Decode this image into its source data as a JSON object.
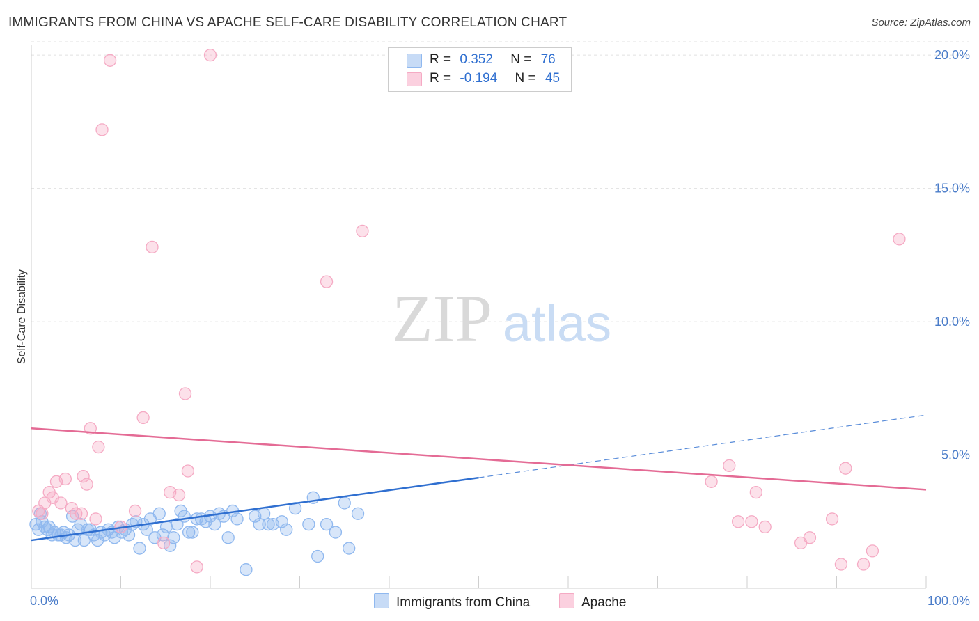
{
  "title": "IMMIGRANTS FROM CHINA VS APACHE SELF-CARE DISABILITY CORRELATION CHART",
  "source": "Source: ZipAtlas.com",
  "watermark": {
    "zip": "ZIP",
    "atlas": "atlas"
  },
  "legend": {
    "rows": [
      {
        "r_label": "R =",
        "r_value": "0.352",
        "n_label": "N =",
        "n_value": "76"
      },
      {
        "r_label": "R =",
        "r_value": "-0.194",
        "n_label": "N =",
        "n_value": "45"
      }
    ]
  },
  "bottom_legend": [
    "Immigrants from China",
    "Apache"
  ],
  "chart_data": {
    "type": "scatter",
    "title": "IMMIGRANTS FROM CHINA VS APACHE SELF-CARE DISABILITY CORRELATION CHART",
    "xlabel": "",
    "ylabel": "Self-Care Disability",
    "xlim": [
      0,
      100
    ],
    "ylim": [
      0,
      20.5
    ],
    "x_tick_labels": [
      "0.0%",
      "100.0%"
    ],
    "y_ticks": [
      5,
      10,
      15,
      20
    ],
    "y_tick_labels": [
      "5.0%",
      "10.0%",
      "15.0%",
      "20.0%"
    ],
    "grid": "horizontal dashed",
    "legend_position": "top-center",
    "series": [
      {
        "name": "Immigrants from China",
        "color": "#8fb8ef",
        "line_color": "#2f6fd0",
        "trend": {
          "x0": 0,
          "y0": 1.8,
          "x1": 100,
          "y1": 6.5,
          "solid_until": 50
        },
        "points": [
          [
            0.5,
            2.4
          ],
          [
            0.8,
            2.2
          ],
          [
            1.0,
            2.8
          ],
          [
            1.2,
            2.5
          ],
          [
            1.5,
            2.3
          ],
          [
            1.8,
            2.2
          ],
          [
            2.0,
            2.3
          ],
          [
            2.3,
            2.0
          ],
          [
            2.6,
            2.1
          ],
          [
            3.0,
            2.0
          ],
          [
            3.3,
            2.0
          ],
          [
            3.6,
            2.1
          ],
          [
            3.9,
            1.9
          ],
          [
            4.2,
            2.0
          ],
          [
            4.6,
            2.7
          ],
          [
            4.9,
            1.8
          ],
          [
            5.2,
            2.2
          ],
          [
            5.5,
            2.4
          ],
          [
            5.9,
            1.8
          ],
          [
            6.3,
            2.2
          ],
          [
            6.6,
            2.2
          ],
          [
            7.0,
            2.0
          ],
          [
            7.4,
            1.8
          ],
          [
            7.8,
            2.1
          ],
          [
            8.2,
            2.0
          ],
          [
            8.6,
            2.2
          ],
          [
            9.0,
            2.1
          ],
          [
            9.3,
            1.9
          ],
          [
            9.7,
            2.3
          ],
          [
            10.1,
            2.1
          ],
          [
            10.5,
            2.2
          ],
          [
            10.9,
            2.0
          ],
          [
            11.3,
            2.4
          ],
          [
            11.7,
            2.5
          ],
          [
            12.1,
            1.5
          ],
          [
            12.5,
            2.4
          ],
          [
            12.9,
            2.2
          ],
          [
            13.3,
            2.6
          ],
          [
            13.8,
            1.9
          ],
          [
            14.3,
            2.8
          ],
          [
            14.7,
            2.0
          ],
          [
            15.1,
            2.3
          ],
          [
            15.5,
            1.6
          ],
          [
            15.9,
            1.9
          ],
          [
            16.3,
            2.4
          ],
          [
            16.7,
            2.9
          ],
          [
            17.1,
            2.7
          ],
          [
            17.6,
            2.1
          ],
          [
            18.0,
            2.1
          ],
          [
            18.5,
            2.6
          ],
          [
            19.0,
            2.6
          ],
          [
            19.5,
            2.5
          ],
          [
            20.0,
            2.7
          ],
          [
            20.5,
            2.4
          ],
          [
            21.0,
            2.8
          ],
          [
            21.5,
            2.7
          ],
          [
            22.0,
            1.9
          ],
          [
            22.5,
            2.9
          ],
          [
            23.0,
            2.6
          ],
          [
            24.0,
            0.7
          ],
          [
            25.0,
            2.7
          ],
          [
            25.5,
            2.4
          ],
          [
            26.0,
            2.8
          ],
          [
            26.5,
            2.4
          ],
          [
            27.0,
            2.4
          ],
          [
            28.0,
            2.5
          ],
          [
            28.5,
            2.2
          ],
          [
            29.5,
            3.0
          ],
          [
            31.0,
            2.4
          ],
          [
            31.5,
            3.4
          ],
          [
            32.0,
            1.2
          ],
          [
            33.0,
            2.4
          ],
          [
            34.0,
            2.1
          ],
          [
            35.0,
            3.2
          ],
          [
            35.5,
            1.5
          ],
          [
            36.5,
            2.8
          ]
        ]
      },
      {
        "name": "Apache",
        "color": "#f5aac4",
        "line_color": "#e46b95",
        "trend": {
          "x0": 0,
          "y0": 6.0,
          "x1": 100,
          "y1": 3.7
        },
        "points": [
          [
            0.8,
            2.9
          ],
          [
            1.2,
            2.8
          ],
          [
            1.5,
            3.2
          ],
          [
            2.0,
            3.6
          ],
          [
            2.4,
            3.4
          ],
          [
            2.8,
            4.0
          ],
          [
            3.3,
            3.2
          ],
          [
            3.8,
            4.1
          ],
          [
            4.5,
            3.0
          ],
          [
            5.0,
            2.8
          ],
          [
            5.6,
            2.8
          ],
          [
            5.8,
            4.2
          ],
          [
            6.2,
            3.9
          ],
          [
            6.6,
            6.0
          ],
          [
            7.2,
            2.6
          ],
          [
            7.5,
            5.3
          ],
          [
            7.9,
            17.2
          ],
          [
            8.8,
            19.8
          ],
          [
            10.0,
            2.3
          ],
          [
            11.6,
            2.9
          ],
          [
            12.5,
            6.4
          ],
          [
            13.5,
            12.8
          ],
          [
            14.8,
            1.7
          ],
          [
            15.5,
            3.6
          ],
          [
            16.5,
            3.5
          ],
          [
            17.2,
            7.3
          ],
          [
            17.5,
            4.4
          ],
          [
            18.5,
            0.8
          ],
          [
            20.0,
            20.0
          ],
          [
            33.0,
            11.5
          ],
          [
            37.0,
            13.4
          ],
          [
            76.0,
            4.0
          ],
          [
            78.0,
            4.6
          ],
          [
            79.0,
            2.5
          ],
          [
            80.5,
            2.5
          ],
          [
            81.0,
            3.6
          ],
          [
            82.0,
            2.3
          ],
          [
            86.0,
            1.7
          ],
          [
            87.0,
            1.9
          ],
          [
            89.5,
            2.6
          ],
          [
            90.5,
            0.9
          ],
          [
            91.0,
            4.5
          ],
          [
            93.0,
            0.9
          ],
          [
            94.0,
            1.4
          ],
          [
            97.0,
            13.1
          ]
        ]
      }
    ]
  }
}
